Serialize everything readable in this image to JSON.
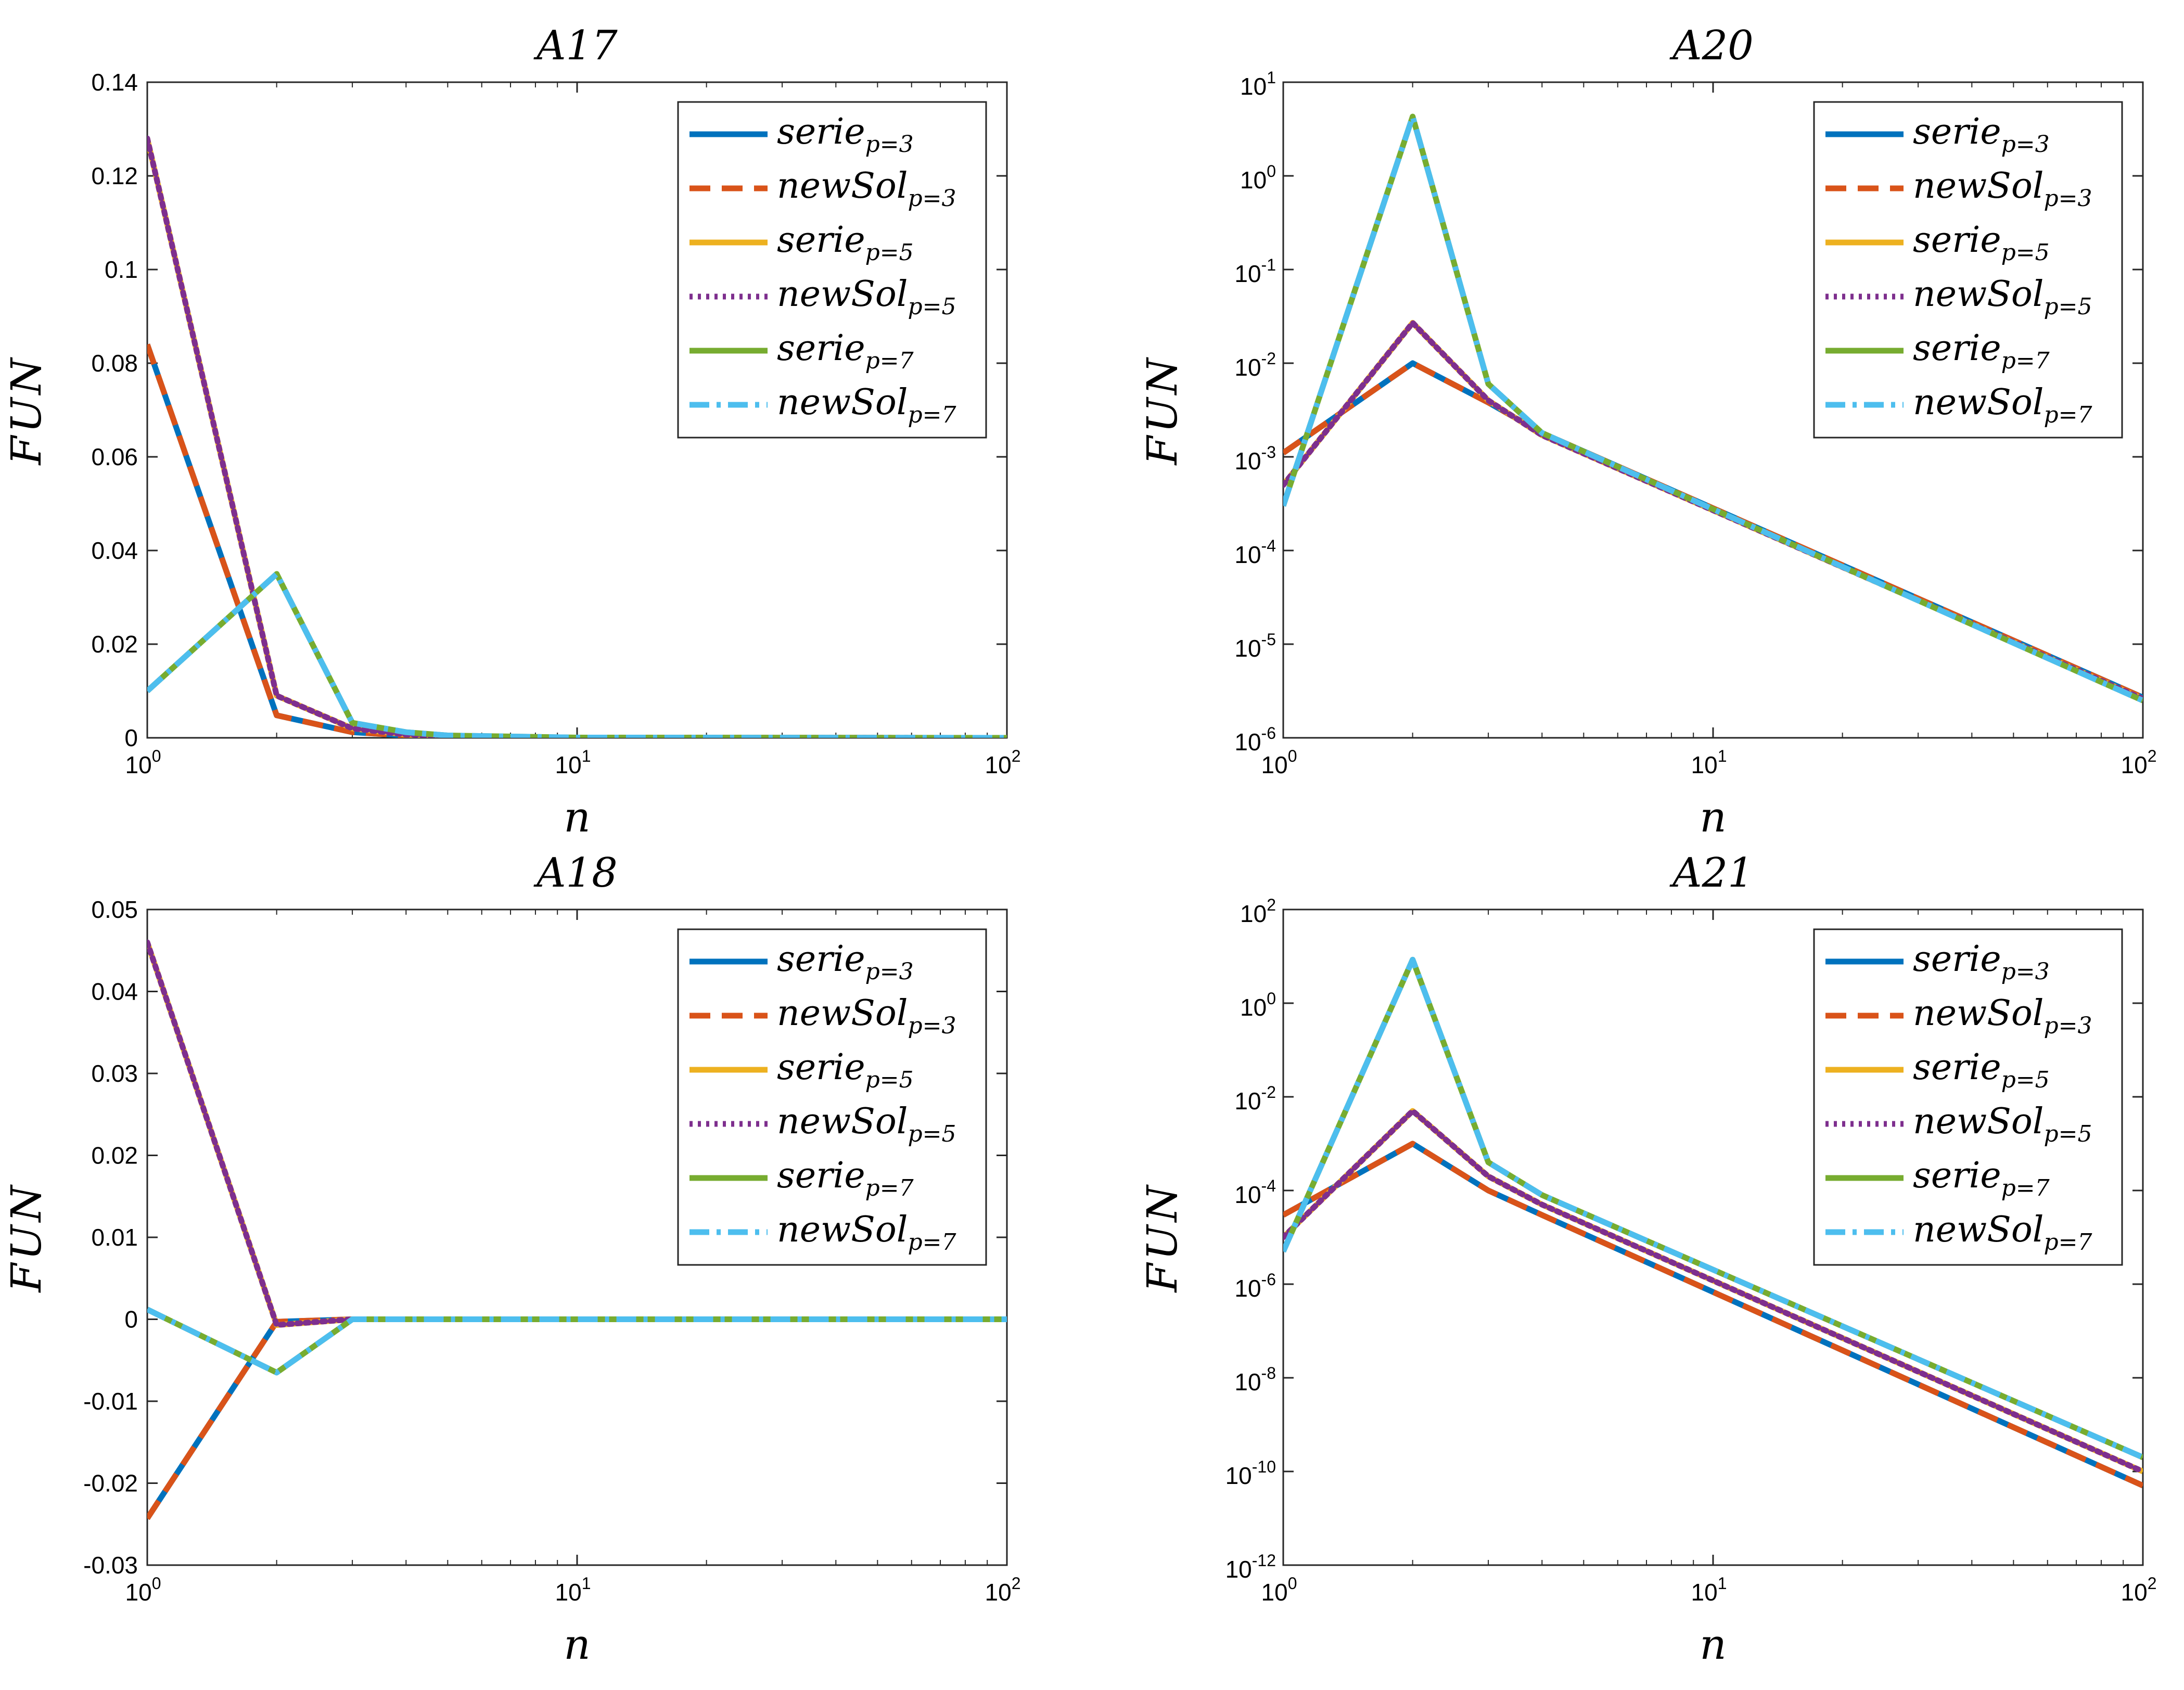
{
  "figure": {
    "domain": "Chart"
  },
  "chart_data": [
    {
      "id": "A17",
      "type": "line",
      "title": "A17",
      "xlabel": "n",
      "ylabel": "FUN",
      "xscale": "log",
      "yscale": "linear",
      "xlim": [
        1,
        100
      ],
      "ylim": [
        0,
        0.14
      ],
      "yticks": [
        "0",
        "0.02",
        "0.04",
        "0.06",
        "0.08",
        "0.1",
        "0.12",
        "0.14"
      ],
      "ytick_values": [
        0,
        0.02,
        0.04,
        0.06,
        0.08,
        0.1,
        0.12,
        0.14
      ],
      "xticks": [
        {
          "base": "10",
          "exp": "0",
          "value": 1
        },
        {
          "base": "10",
          "exp": "1",
          "value": 10
        },
        {
          "base": "10",
          "exp": "2",
          "value": 100
        }
      ],
      "legend_position": "top-right",
      "x": [
        1,
        2,
        3,
        4,
        5,
        10,
        100
      ],
      "series": [
        {
          "name": "serie",
          "sub": "p=3",
          "color": "#0072BD",
          "style": "solid",
          "values": [
            0.084,
            0.0048,
            0.0012,
            0.0005,
            0.0002,
            2e-05,
            0
          ]
        },
        {
          "name": "newSol",
          "sub": "p=3",
          "color": "#D95319",
          "style": "dashed",
          "values": [
            0.084,
            0.0048,
            0.0012,
            0.0005,
            0.0002,
            2e-05,
            0
          ]
        },
        {
          "name": "serie",
          "sub": "p=5",
          "color": "#EDB120",
          "style": "solid",
          "values": [
            0.128,
            0.009,
            0.002,
            0.0007,
            0.0003,
            3e-05,
            0
          ]
        },
        {
          "name": "newSol",
          "sub": "p=5",
          "color": "#7E2F8E",
          "style": "dotted",
          "values": [
            0.128,
            0.009,
            0.002,
            0.0007,
            0.0003,
            3e-05,
            0
          ]
        },
        {
          "name": "serie",
          "sub": "p=7",
          "color": "#77AC30",
          "style": "solid",
          "values": [
            0.01,
            0.035,
            0.0032,
            0.0012,
            0.0005,
            5e-05,
            0
          ]
        },
        {
          "name": "newSol",
          "sub": "p=7",
          "color": "#4DBEEE",
          "style": "dashdot",
          "values": [
            0.01,
            0.035,
            0.0032,
            0.0012,
            0.0005,
            5e-05,
            0
          ]
        }
      ]
    },
    {
      "id": "A20",
      "type": "line",
      "title": "A20",
      "xlabel": "n",
      "ylabel": "FUN",
      "xscale": "log",
      "yscale": "log",
      "xlim": [
        1,
        100
      ],
      "ylim": [
        1e-06,
        10
      ],
      "yticks": [
        {
          "base": "10",
          "exp": "-6",
          "value": 1e-06
        },
        {
          "base": "10",
          "exp": "-5",
          "value": 1e-05
        },
        {
          "base": "10",
          "exp": "-4",
          "value": 0.0001
        },
        {
          "base": "10",
          "exp": "-3",
          "value": 0.001
        },
        {
          "base": "10",
          "exp": "-2",
          "value": 0.01
        },
        {
          "base": "10",
          "exp": "-1",
          "value": 0.1
        },
        {
          "base": "10",
          "exp": "0",
          "value": 1
        },
        {
          "base": "10",
          "exp": "1",
          "value": 10
        }
      ],
      "xticks": [
        {
          "base": "10",
          "exp": "0",
          "value": 1
        },
        {
          "base": "10",
          "exp": "1",
          "value": 10
        },
        {
          "base": "10",
          "exp": "2",
          "value": 100
        }
      ],
      "legend_position": "top-right",
      "x": [
        1,
        2,
        3,
        4,
        100
      ],
      "series": [
        {
          "name": "serie",
          "sub": "p=3",
          "color": "#0072BD",
          "style": "solid",
          "values": [
            0.0011,
            0.01,
            0.0038,
            0.0018,
            2.7e-06
          ]
        },
        {
          "name": "newSol",
          "sub": "p=3",
          "color": "#D95319",
          "style": "dashed",
          "values": [
            0.0011,
            0.01,
            0.0038,
            0.0018,
            2.7e-06
          ]
        },
        {
          "name": "serie",
          "sub": "p=5",
          "color": "#EDB120",
          "style": "solid",
          "values": [
            0.0005,
            0.027,
            0.004,
            0.0017,
            2.6e-06
          ]
        },
        {
          "name": "newSol",
          "sub": "p=5",
          "color": "#7E2F8E",
          "style": "dotted",
          "values": [
            0.0005,
            0.027,
            0.004,
            0.0017,
            2.6e-06
          ]
        },
        {
          "name": "serie",
          "sub": "p=7",
          "color": "#77AC30",
          "style": "solid",
          "values": [
            0.0003,
            4.3,
            0.006,
            0.0018,
            2.5e-06
          ]
        },
        {
          "name": "newSol",
          "sub": "p=7",
          "color": "#4DBEEE",
          "style": "dashdot",
          "values": [
            0.0003,
            4.3,
            0.006,
            0.0018,
            2.5e-06
          ]
        }
      ]
    },
    {
      "id": "A18",
      "type": "line",
      "title": "A18",
      "xlabel": "n",
      "ylabel": "FUN",
      "xscale": "log",
      "yscale": "linear",
      "xlim": [
        1,
        100
      ],
      "ylim": [
        -0.03,
        0.05
      ],
      "yticks": [
        "-0.03",
        "-0.02",
        "-0.01",
        "0",
        "0.01",
        "0.02",
        "0.03",
        "0.04",
        "0.05"
      ],
      "ytick_values": [
        -0.03,
        -0.02,
        -0.01,
        0,
        0.01,
        0.02,
        0.03,
        0.04,
        0.05
      ],
      "xticks": [
        {
          "base": "10",
          "exp": "0",
          "value": 1
        },
        {
          "base": "10",
          "exp": "1",
          "value": 10
        },
        {
          "base": "10",
          "exp": "2",
          "value": 100
        }
      ],
      "legend_position": "top-right",
      "x": [
        1,
        2,
        3,
        4,
        10,
        100
      ],
      "series": [
        {
          "name": "serie",
          "sub": "p=3",
          "color": "#0072BD",
          "style": "solid",
          "values": [
            -0.0243,
            -0.0003,
            0,
            0,
            0,
            0
          ]
        },
        {
          "name": "newSol",
          "sub": "p=3",
          "color": "#D95319",
          "style": "dashed",
          "values": [
            -0.0243,
            -0.0003,
            0,
            0,
            0,
            0
          ]
        },
        {
          "name": "serie",
          "sub": "p=5",
          "color": "#EDB120",
          "style": "solid",
          "values": [
            0.046,
            -0.0007,
            0,
            0,
            0,
            0
          ]
        },
        {
          "name": "newSol",
          "sub": "p=5",
          "color": "#7E2F8E",
          "style": "dotted",
          "values": [
            0.046,
            -0.0007,
            0,
            0,
            0,
            0
          ]
        },
        {
          "name": "serie",
          "sub": "p=7",
          "color": "#77AC30",
          "style": "solid",
          "values": [
            0.0012,
            -0.0065,
            0,
            0,
            0,
            0
          ]
        },
        {
          "name": "newSol",
          "sub": "p=7",
          "color": "#4DBEEE",
          "style": "dashdot",
          "values": [
            0.0012,
            -0.0065,
            0,
            0,
            0,
            0
          ]
        }
      ]
    },
    {
      "id": "A21",
      "type": "line",
      "title": "A21",
      "xlabel": "n",
      "ylabel": "FUN",
      "xscale": "log",
      "yscale": "log",
      "xlim": [
        1,
        100
      ],
      "ylim": [
        1e-12,
        100
      ],
      "yticks": [
        {
          "base": "10",
          "exp": "-12",
          "value": 1e-12
        },
        {
          "base": "10",
          "exp": "-10",
          "value": 1e-10
        },
        {
          "base": "10",
          "exp": "-8",
          "value": 1e-08
        },
        {
          "base": "10",
          "exp": "-6",
          "value": 1e-06
        },
        {
          "base": "10",
          "exp": "-4",
          "value": 0.0001
        },
        {
          "base": "10",
          "exp": "-2",
          "value": 0.01
        },
        {
          "base": "10",
          "exp": "0",
          "value": 1
        },
        {
          "base": "10",
          "exp": "2",
          "value": 100
        }
      ],
      "xticks": [
        {
          "base": "10",
          "exp": "0",
          "value": 1
        },
        {
          "base": "10",
          "exp": "1",
          "value": 10
        },
        {
          "base": "10",
          "exp": "2",
          "value": 100
        }
      ],
      "legend_position": "top-right",
      "x": [
        1,
        2,
        3,
        4,
        100
      ],
      "series": [
        {
          "name": "serie",
          "sub": "p=3",
          "color": "#0072BD",
          "style": "solid",
          "values": [
            3e-05,
            0.001,
            0.0001,
            3e-05,
            5e-11
          ]
        },
        {
          "name": "newSol",
          "sub": "p=3",
          "color": "#D95319",
          "style": "dashed",
          "values": [
            3e-05,
            0.001,
            0.0001,
            3e-05,
            5e-11
          ]
        },
        {
          "name": "serie",
          "sub": "p=5",
          "color": "#EDB120",
          "style": "solid",
          "values": [
            1e-05,
            0.005,
            0.0002,
            5e-05,
            1e-10
          ]
        },
        {
          "name": "newSol",
          "sub": "p=5",
          "color": "#7E2F8E",
          "style": "dotted",
          "values": [
            1e-05,
            0.005,
            0.0002,
            5e-05,
            1e-10
          ]
        },
        {
          "name": "serie",
          "sub": "p=7",
          "color": "#77AC30",
          "style": "solid",
          "values": [
            5e-06,
            8.5,
            0.0004,
            8e-05,
            2e-10
          ]
        },
        {
          "name": "newSol",
          "sub": "p=7",
          "color": "#4DBEEE",
          "style": "dashdot",
          "values": [
            5e-06,
            8.5,
            0.0004,
            8e-05,
            2e-10
          ]
        }
      ]
    }
  ]
}
